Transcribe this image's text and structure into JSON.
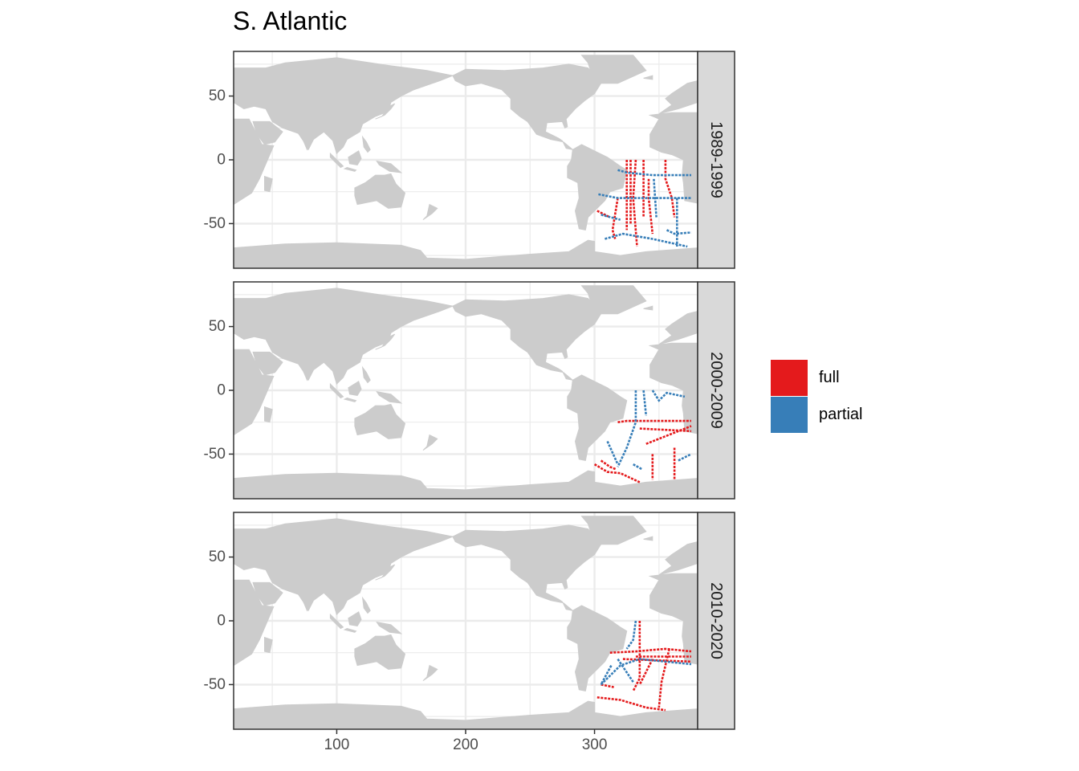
{
  "title": "S. Atlantic",
  "chart_data": {
    "type": "map",
    "xlim": [
      20,
      380
    ],
    "ylim": [
      -85,
      85
    ],
    "x_ticks": [
      100,
      200,
      300
    ],
    "y_ticks": [
      50,
      0,
      -50
    ],
    "y_tick_labels": [
      "50",
      "0",
      "-50"
    ],
    "x_tick_labels": [
      "100",
      "200",
      "300"
    ],
    "panels": [
      {
        "label": "1989-1999",
        "tracks": [
          {
            "category": "full",
            "points": [
              [
                325,
                0
              ],
              [
                325,
                -55
              ]
            ]
          },
          {
            "category": "full",
            "points": [
              [
                328,
                0
              ],
              [
                328,
                -50
              ]
            ]
          },
          {
            "category": "full",
            "points": [
              [
                332,
                0
              ],
              [
                330,
                -30
              ],
              [
                333,
                -68
              ]
            ]
          },
          {
            "category": "full",
            "points": [
              [
                338,
                0
              ],
              [
                338,
                -45
              ]
            ]
          },
          {
            "category": "full",
            "points": [
              [
                342,
                -15
              ],
              [
                342,
                -30
              ],
              [
                345,
                -58
              ]
            ]
          },
          {
            "category": "full",
            "points": [
              [
                355,
                0
              ],
              [
                355,
                -15
              ],
              [
                360,
                -30
              ],
              [
                362,
                -45
              ]
            ]
          },
          {
            "category": "full",
            "points": [
              [
                318,
                -30
              ],
              [
                314,
                -55
              ],
              [
                316,
                -62
              ]
            ]
          },
          {
            "category": "full",
            "points": [
              [
                302,
                -40
              ],
              [
                312,
                -45
              ]
            ]
          },
          {
            "category": "partial",
            "points": [
              [
                318,
                -8
              ],
              [
                325,
                -10
              ],
              [
                345,
                -12
              ],
              [
                375,
                -12
              ]
            ]
          },
          {
            "category": "partial",
            "points": [
              [
                303,
                -27
              ],
              [
                318,
                -30
              ],
              [
                345,
                -30
              ],
              [
                375,
                -30
              ]
            ]
          },
          {
            "category": "partial",
            "points": [
              [
                308,
                -62
              ],
              [
                322,
                -58
              ],
              [
                345,
                -62
              ],
              [
                372,
                -68
              ]
            ]
          },
          {
            "category": "partial",
            "points": [
              [
                305,
                -43
              ],
              [
                320,
                -47
              ]
            ]
          },
          {
            "category": "partial",
            "points": [
              [
                356,
                -55
              ],
              [
                362,
                -58
              ],
              [
                375,
                -57
              ]
            ]
          },
          {
            "category": "partial",
            "points": [
              [
                364,
                -30
              ],
              [
                364,
                -68
              ]
            ]
          },
          {
            "category": "partial",
            "points": [
              [
                346,
                -15
              ],
              [
                348,
                -45
              ]
            ]
          }
        ]
      },
      {
        "label": "2000-2009",
        "tracks": [
          {
            "category": "full",
            "points": [
              [
                318,
                -25
              ],
              [
                325,
                -24
              ],
              [
                345,
                -24
              ],
              [
                375,
                -24
              ]
            ]
          },
          {
            "category": "full",
            "points": [
              [
                335,
                -30
              ],
              [
                375,
                -32
              ]
            ]
          },
          {
            "category": "full",
            "points": [
              [
                340,
                -42
              ],
              [
                375,
                -28
              ]
            ]
          },
          {
            "category": "full",
            "points": [
              [
                362,
                -45
              ],
              [
                362,
                -70
              ]
            ]
          },
          {
            "category": "full",
            "points": [
              [
                345,
                -50
              ],
              [
                345,
                -70
              ]
            ]
          },
          {
            "category": "full",
            "points": [
              [
                300,
                -58
              ],
              [
                310,
                -64
              ],
              [
                320,
                -65
              ],
              [
                335,
                -72
              ]
            ]
          },
          {
            "category": "full",
            "points": [
              [
                305,
                -55
              ],
              [
                312,
                -60
              ],
              [
                317,
                -62
              ]
            ]
          },
          {
            "category": "partial",
            "points": [
              [
                332,
                0
              ],
              [
                332,
                -25
              ],
              [
                325,
                -45
              ],
              [
                318,
                -60
              ]
            ]
          },
          {
            "category": "partial",
            "points": [
              [
                338,
                0
              ],
              [
                340,
                -20
              ]
            ]
          },
          {
            "category": "partial",
            "points": [
              [
                345,
                0
              ],
              [
                350,
                -8
              ],
              [
                356,
                -2
              ],
              [
                370,
                -5
              ]
            ]
          },
          {
            "category": "partial",
            "points": [
              [
                310,
                -40
              ],
              [
                318,
                -58
              ]
            ]
          },
          {
            "category": "partial",
            "points": [
              [
                365,
                -55
              ],
              [
                375,
                -50
              ]
            ]
          },
          {
            "category": "partial",
            "points": [
              [
                330,
                -58
              ],
              [
                337,
                -62
              ]
            ]
          }
        ]
      },
      {
        "label": "2010-2020",
        "tracks": [
          {
            "category": "full",
            "points": [
              [
                335,
                0
              ],
              [
                335,
                -45
              ],
              [
                330,
                -55
              ]
            ]
          },
          {
            "category": "full",
            "points": [
              [
                312,
                -25
              ],
              [
                332,
                -24
              ],
              [
                355,
                -22
              ],
              [
                375,
                -24
              ]
            ]
          },
          {
            "category": "full",
            "points": [
              [
                332,
                -28
              ],
              [
                375,
                -28
              ]
            ]
          },
          {
            "category": "full",
            "points": [
              [
                322,
                -30
              ],
              [
                375,
                -32
              ]
            ]
          },
          {
            "category": "full",
            "points": [
              [
                345,
                -30
              ],
              [
                335,
                -50
              ]
            ]
          },
          {
            "category": "full",
            "points": [
              [
                358,
                -22
              ],
              [
                352,
                -48
              ],
              [
                350,
                -68
              ]
            ]
          },
          {
            "category": "full",
            "points": [
              [
                302,
                -60
              ],
              [
                320,
                -62
              ],
              [
                340,
                -68
              ],
              [
                355,
                -70
              ]
            ]
          },
          {
            "category": "full",
            "points": [
              [
                305,
                -50
              ],
              [
                315,
                -52
              ]
            ]
          },
          {
            "category": "partial",
            "points": [
              [
                332,
                0
              ],
              [
                330,
                -15
              ],
              [
                325,
                -22
              ]
            ]
          },
          {
            "category": "partial",
            "points": [
              [
                305,
                -50
              ],
              [
                320,
                -35
              ],
              [
                335,
                -30
              ],
              [
                375,
                -34
              ]
            ]
          },
          {
            "category": "partial",
            "points": [
              [
                318,
                -30
              ],
              [
                330,
                -48
              ]
            ]
          },
          {
            "category": "partial",
            "points": [
              [
                313,
                -35
              ],
              [
                305,
                -50
              ]
            ]
          }
        ]
      }
    ]
  },
  "legend": {
    "items": [
      {
        "label": "full",
        "color": "#e41a1c"
      },
      {
        "label": "partial",
        "color": "#377eb8"
      }
    ]
  },
  "colors": {
    "land": "#cccccc",
    "grid": "#ebebeb",
    "strip_fill": "#d9d9d9",
    "border": "#333333"
  }
}
